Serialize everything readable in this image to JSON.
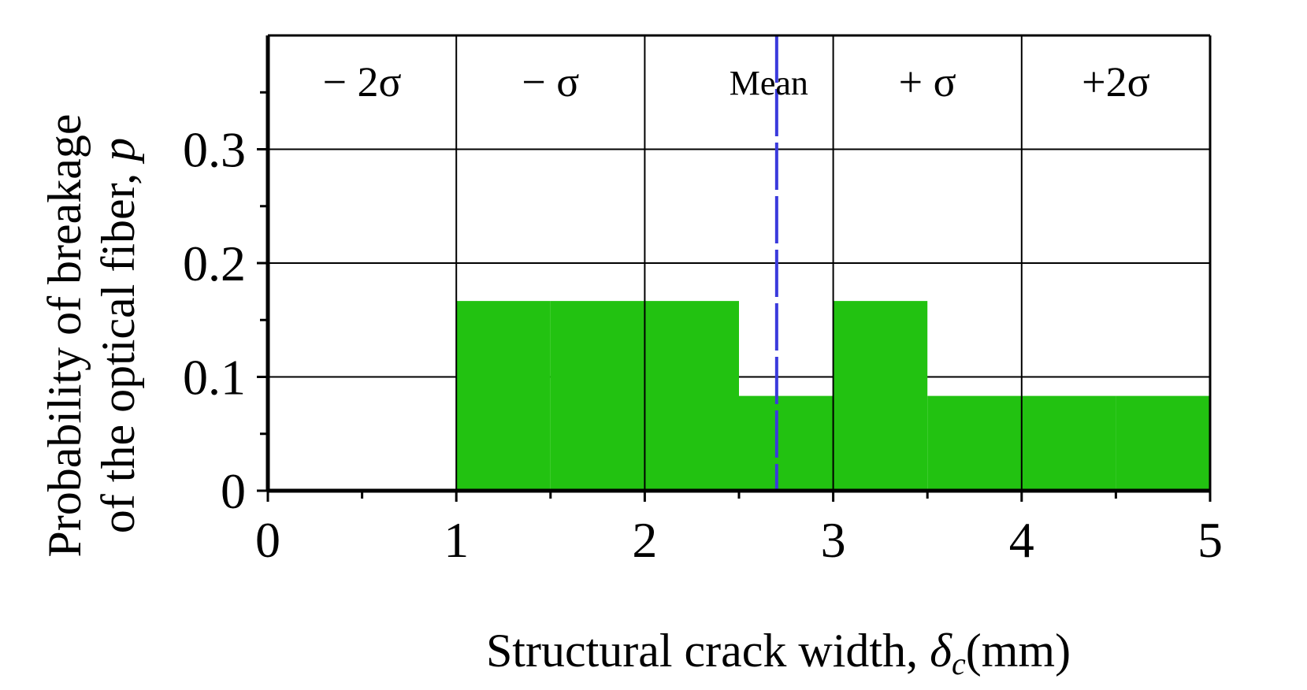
{
  "chart_data": {
    "type": "bar",
    "title": "",
    "xlabel": "Structural crack width,",
    "xlabel_symbol": "δ",
    "xlabel_subscript": "c",
    "xlabel_unit": "(mm)",
    "ylabel_line1": "Probability of breakage",
    "ylabel_line2_text": "of the optical fiber,",
    "ylabel_line2_symbol": "p",
    "xlim": [
      0,
      5
    ],
    "ylim": [
      0,
      0.4
    ],
    "x_ticks": [
      "0",
      "1",
      "2",
      "3",
      "4",
      "5"
    ],
    "y_ticks": [
      "0",
      "0.1",
      "0.2",
      "0.3"
    ],
    "bins": [
      {
        "x0": 1.0,
        "x1": 1.5,
        "value": 0.1667
      },
      {
        "x0": 1.5,
        "x1": 2.0,
        "value": 0.1667
      },
      {
        "x0": 2.0,
        "x1": 2.5,
        "value": 0.1667
      },
      {
        "x0": 2.5,
        "x1": 3.0,
        "value": 0.0833
      },
      {
        "x0": 3.0,
        "x1": 3.5,
        "value": 0.1667
      },
      {
        "x0": 3.5,
        "x1": 4.0,
        "value": 0.0833
      },
      {
        "x0": 4.0,
        "x1": 4.5,
        "value": 0.0833
      },
      {
        "x0": 4.5,
        "x1": 5.0,
        "value": 0.0833
      }
    ],
    "bar_color": "#22c211",
    "sigma_lines": [
      1,
      2,
      3,
      4
    ],
    "mean_value": 2.7,
    "mean_label": "Mean",
    "mean_line_color": "#3a3adc",
    "band_labels": [
      {
        "text": "− 2σ",
        "x": 0.5
      },
      {
        "text": "− σ",
        "x": 1.5
      },
      {
        "text": "+ σ",
        "x": 3.5
      },
      {
        "text": "+2σ",
        "x": 4.5
      }
    ],
    "grid": true
  }
}
